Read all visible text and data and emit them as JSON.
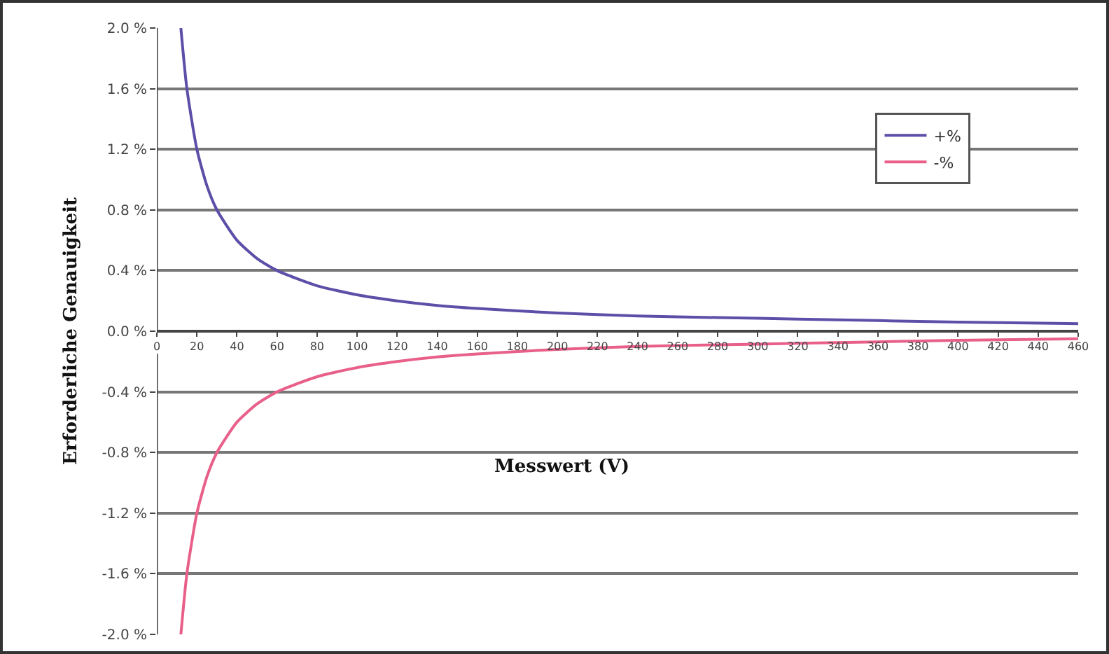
{
  "chart_data": {
    "type": "line",
    "xlabel": "Messwert (V)",
    "ylabel": "Erforderliche Genauigkeit",
    "x": [
      12,
      15,
      20,
      25,
      30,
      40,
      50,
      60,
      80,
      100,
      120,
      140,
      160,
      200,
      240,
      280,
      320,
      360,
      400,
      460
    ],
    "series": [
      {
        "name": "+%",
        "color": "#5b4fa8",
        "values": [
          2.0,
          1.6,
          1.2,
          0.96,
          0.8,
          0.6,
          0.48,
          0.4,
          0.3,
          0.24,
          0.2,
          0.17,
          0.15,
          0.12,
          0.1,
          0.09,
          0.08,
          0.07,
          0.06,
          0.05
        ]
      },
      {
        "name": "-%",
        "color": "#e8608a",
        "values": [
          -2.0,
          -1.6,
          -1.2,
          -0.96,
          -0.8,
          -0.6,
          -0.48,
          -0.4,
          -0.3,
          -0.24,
          -0.2,
          -0.17,
          -0.15,
          -0.12,
          -0.1,
          -0.09,
          -0.08,
          -0.07,
          -0.06,
          -0.05
        ]
      }
    ],
    "xlim": [
      0,
      460
    ],
    "xticks": [
      0,
      20,
      40,
      60,
      80,
      100,
      120,
      140,
      160,
      180,
      200,
      220,
      240,
      260,
      280,
      300,
      320,
      340,
      360,
      380,
      400,
      420,
      440,
      460
    ],
    "ylim": [
      -2.0,
      2.0
    ],
    "yticks": [
      {
        "value": -2.0,
        "label": "-2.0 %"
      },
      {
        "value": -1.6,
        "label": "-1.6 %"
      },
      {
        "value": -1.2,
        "label": "-1.2 %"
      },
      {
        "value": -0.8,
        "label": "-0.8 %"
      },
      {
        "value": -0.4,
        "label": "-0.4 %"
      },
      {
        "value": 0,
        "label": "0.0 %"
      },
      {
        "value": 0.4,
        "label": "0.4 %"
      },
      {
        "value": 0.8,
        "label": "0.8 %"
      },
      {
        "value": 1.2,
        "label": "1.2 %"
      },
      {
        "value": 1.6,
        "label": "1.6 %"
      },
      {
        "value": 2.0,
        "label": "2.0 %"
      }
    ],
    "grid": "y",
    "legend": "top right",
    "line_style": "solid",
    "marker": "none"
  }
}
